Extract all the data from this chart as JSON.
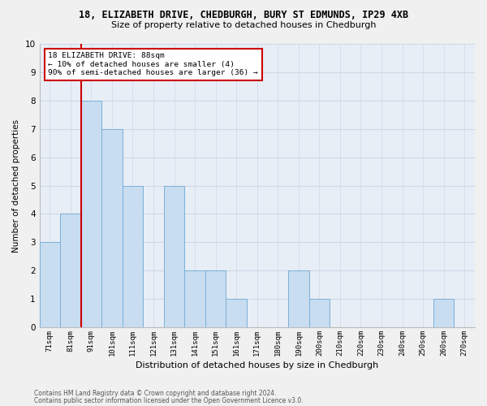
{
  "title_line1": "18, ELIZABETH DRIVE, CHEDBURGH, BURY ST EDMUNDS, IP29 4XB",
  "title_line2": "Size of property relative to detached houses in Chedburgh",
  "xlabel": "Distribution of detached houses by size in Chedburgh",
  "ylabel": "Number of detached properties",
  "categories": [
    "71sqm",
    "81sqm",
    "91sqm",
    "101sqm",
    "111sqm",
    "121sqm",
    "131sqm",
    "141sqm",
    "151sqm",
    "161sqm",
    "171sqm",
    "180sqm",
    "190sqm",
    "200sqm",
    "210sqm",
    "220sqm",
    "230sqm",
    "240sqm",
    "250sqm",
    "260sqm",
    "270sqm"
  ],
  "values": [
    3,
    4,
    8,
    7,
    5,
    0,
    5,
    2,
    2,
    1,
    0,
    0,
    2,
    1,
    0,
    0,
    0,
    0,
    0,
    1,
    0
  ],
  "bar_color": "#c8ddf0",
  "bar_edge_color": "#7ab0d8",
  "highlight_idx": 2,
  "highlight_edge_color": "#cc0000",
  "ylim": [
    0,
    10
  ],
  "yticks": [
    0,
    1,
    2,
    3,
    4,
    5,
    6,
    7,
    8,
    9,
    10
  ],
  "annotation_text": "18 ELIZABETH DRIVE: 88sqm\n← 10% of detached houses are smaller (4)\n90% of semi-detached houses are larger (36) →",
  "annotation_edge_color": "#cc0000",
  "fig_bg": "#f0f0f0",
  "plot_bg": "#e8eef6",
  "grid_color": "#d0d8e8",
  "footer1": "Contains HM Land Registry data © Crown copyright and database right 2024.",
  "footer2": "Contains public sector information licensed under the Open Government Licence v3.0."
}
